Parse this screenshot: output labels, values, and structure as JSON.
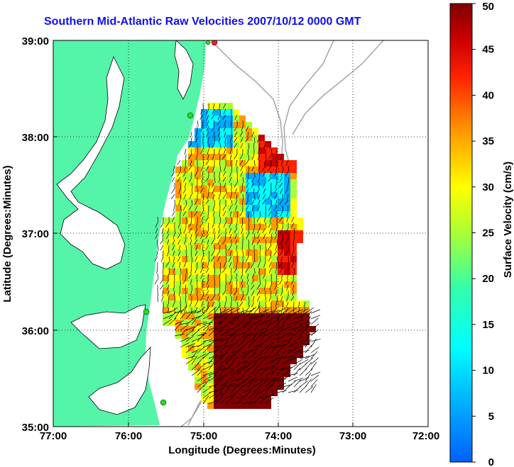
{
  "title": "Southern Mid-Atlantic Raw Velocities 2007/10/12 0000 GMT",
  "xlabel": "Longitude (Degrees:Minutes)",
  "ylabel": "Latitude (Degrees:Minutes)",
  "x_ticks": [
    "77:00",
    "76:00",
    "75:00",
    "74:00",
    "73:00",
    "72:00"
  ],
  "y_ticks": [
    "39:00",
    "38:00",
    "37:00",
    "36:00",
    "35:00"
  ],
  "colorbar": {
    "label": "Surface Velocity (cm/s)",
    "ticks": [
      "50",
      "45",
      "40",
      "35",
      "30",
      "25",
      "20",
      "15",
      "10",
      "5",
      "0"
    ]
  },
  "colors": {
    "land": "#55f5a9",
    "water": "#ffffff",
    "title": "#1010ee",
    "station": "#22dd22",
    "station_alt": "#ee2222"
  }
}
